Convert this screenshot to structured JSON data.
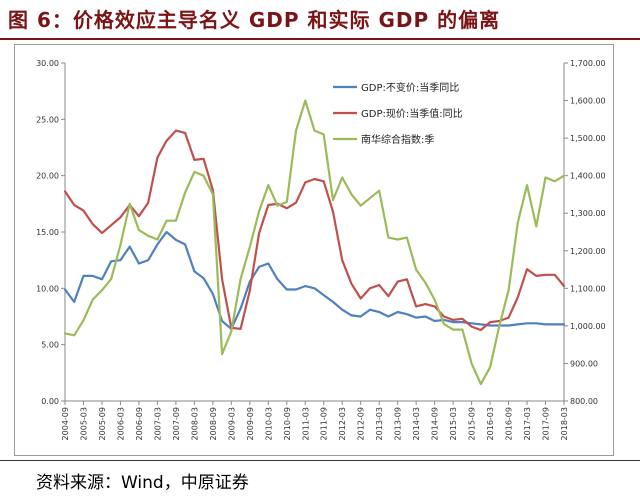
{
  "figure": {
    "title": "图 6：价格效应主导名义 GDP 和实际 GDP 的偏离",
    "source": "资料来源：Wind，中原证券"
  },
  "colors": {
    "title": "#7a1416",
    "blue": "#4f81bd",
    "red": "#c0504d",
    "green": "#9bbb59"
  },
  "chart_data": {
    "type": "line",
    "x": [
      "2004-09",
      "2004-12",
      "2005-03",
      "2005-06",
      "2005-09",
      "2005-12",
      "2006-03",
      "2006-06",
      "2006-09",
      "2006-12",
      "2007-03",
      "2007-06",
      "2007-09",
      "2007-12",
      "2008-03",
      "2008-06",
      "2008-09",
      "2008-12",
      "2009-03",
      "2009-06",
      "2009-09",
      "2009-12",
      "2010-03",
      "2010-06",
      "2010-09",
      "2010-12",
      "2011-03",
      "2011-06",
      "2011-09",
      "2011-12",
      "2012-03",
      "2012-06",
      "2012-09",
      "2012-12",
      "2013-03",
      "2013-06",
      "2013-09",
      "2013-12",
      "2014-03",
      "2014-06",
      "2014-09",
      "2014-12",
      "2015-03",
      "2015-06",
      "2015-09",
      "2015-12",
      "2016-03",
      "2016-06",
      "2016-09",
      "2016-12",
      "2017-03",
      "2017-06",
      "2017-09",
      "2017-12",
      "2018-03"
    ],
    "x_tick_labels": [
      "2004-09",
      "2005-03",
      "2005-09",
      "2006-03",
      "2006-09",
      "2007-03",
      "2007-09",
      "2008-03",
      "2008-09",
      "2009-03",
      "2009-09",
      "2010-03",
      "2010-09",
      "2011-03",
      "2011-09",
      "2012-03",
      "2012-09",
      "2013-03",
      "2013-09",
      "2014-03",
      "2014-09",
      "2015-03",
      "2015-09",
      "2016-03",
      "2016-09",
      "2017-03",
      "2017-09",
      "2018-03"
    ],
    "y_left": {
      "ylim": [
        0,
        30
      ],
      "ticks": [
        "0.00",
        "5.00",
        "10.00",
        "15.00",
        "20.00",
        "25.00",
        "30.00"
      ]
    },
    "y_right": {
      "ylim": [
        800,
        1700
      ],
      "ticks": [
        "800.00",
        "900.00",
        "1,000.00",
        "1,100.00",
        "1,200.00",
        "1,300.00",
        "1,400.00",
        "1,500.00",
        "1,600.00",
        "1,700.00"
      ]
    },
    "legend_position": "top-right",
    "series": [
      {
        "name": "GDP:不变价:当季同比",
        "axis": "left",
        "color": "#4f81bd",
        "values": [
          9.9,
          8.8,
          11.1,
          11.1,
          10.8,
          12.4,
          12.5,
          13.7,
          12.2,
          12.5,
          13.9,
          15.0,
          14.3,
          13.9,
          11.5,
          10.9,
          9.5,
          7.1,
          6.4,
          8.2,
          10.6,
          11.9,
          12.2,
          10.8,
          9.9,
          9.9,
          10.2,
          10.0,
          9.4,
          8.8,
          8.1,
          7.6,
          7.5,
          8.1,
          7.9,
          7.5,
          7.9,
          7.7,
          7.4,
          7.5,
          7.1,
          7.2,
          7.0,
          7.0,
          6.9,
          6.8,
          6.7,
          6.7,
          6.7,
          6.8,
          6.9,
          6.9,
          6.8,
          6.8,
          6.8
        ]
      },
      {
        "name": "GDP:现价:当季值:同比",
        "axis": "left",
        "color": "#c0504d",
        "values": [
          18.6,
          17.4,
          16.9,
          15.7,
          14.9,
          15.6,
          16.3,
          17.4,
          16.4,
          17.6,
          21.6,
          23.1,
          24.0,
          23.8,
          21.4,
          21.5,
          18.7,
          10.8,
          6.5,
          6.4,
          9.8,
          14.9,
          17.4,
          17.5,
          17.1,
          17.6,
          19.4,
          19.7,
          19.5,
          16.8,
          12.5,
          10.4,
          9.1,
          10.0,
          10.3,
          9.3,
          10.6,
          10.8,
          8.4,
          8.6,
          8.4,
          7.5,
          7.2,
          7.3,
          6.6,
          6.3,
          7.0,
          7.1,
          7.4,
          9.2,
          11.7,
          11.1,
          11.2,
          11.2,
          10.2
        ]
      },
      {
        "name": "南华综合指数:季",
        "axis": "right",
        "color": "#9bbb59",
        "values": [
          980,
          975,
          1015,
          1070,
          1095,
          1125,
          1215,
          1325,
          1255,
          1240,
          1230,
          1280,
          1280,
          1355,
          1410,
          1400,
          1350,
          925,
          985,
          1125,
          1210,
          1305,
          1375,
          1320,
          1330,
          1520,
          1600,
          1520,
          1510,
          1335,
          1395,
          1350,
          1320,
          1340,
          1360,
          1235,
          1230,
          1235,
          1150,
          1115,
          1070,
          1005,
          990,
          990,
          900,
          845,
          890,
          1000,
          1095,
          1275,
          1375,
          1265,
          1395,
          1385,
          1400
        ]
      }
    ]
  }
}
